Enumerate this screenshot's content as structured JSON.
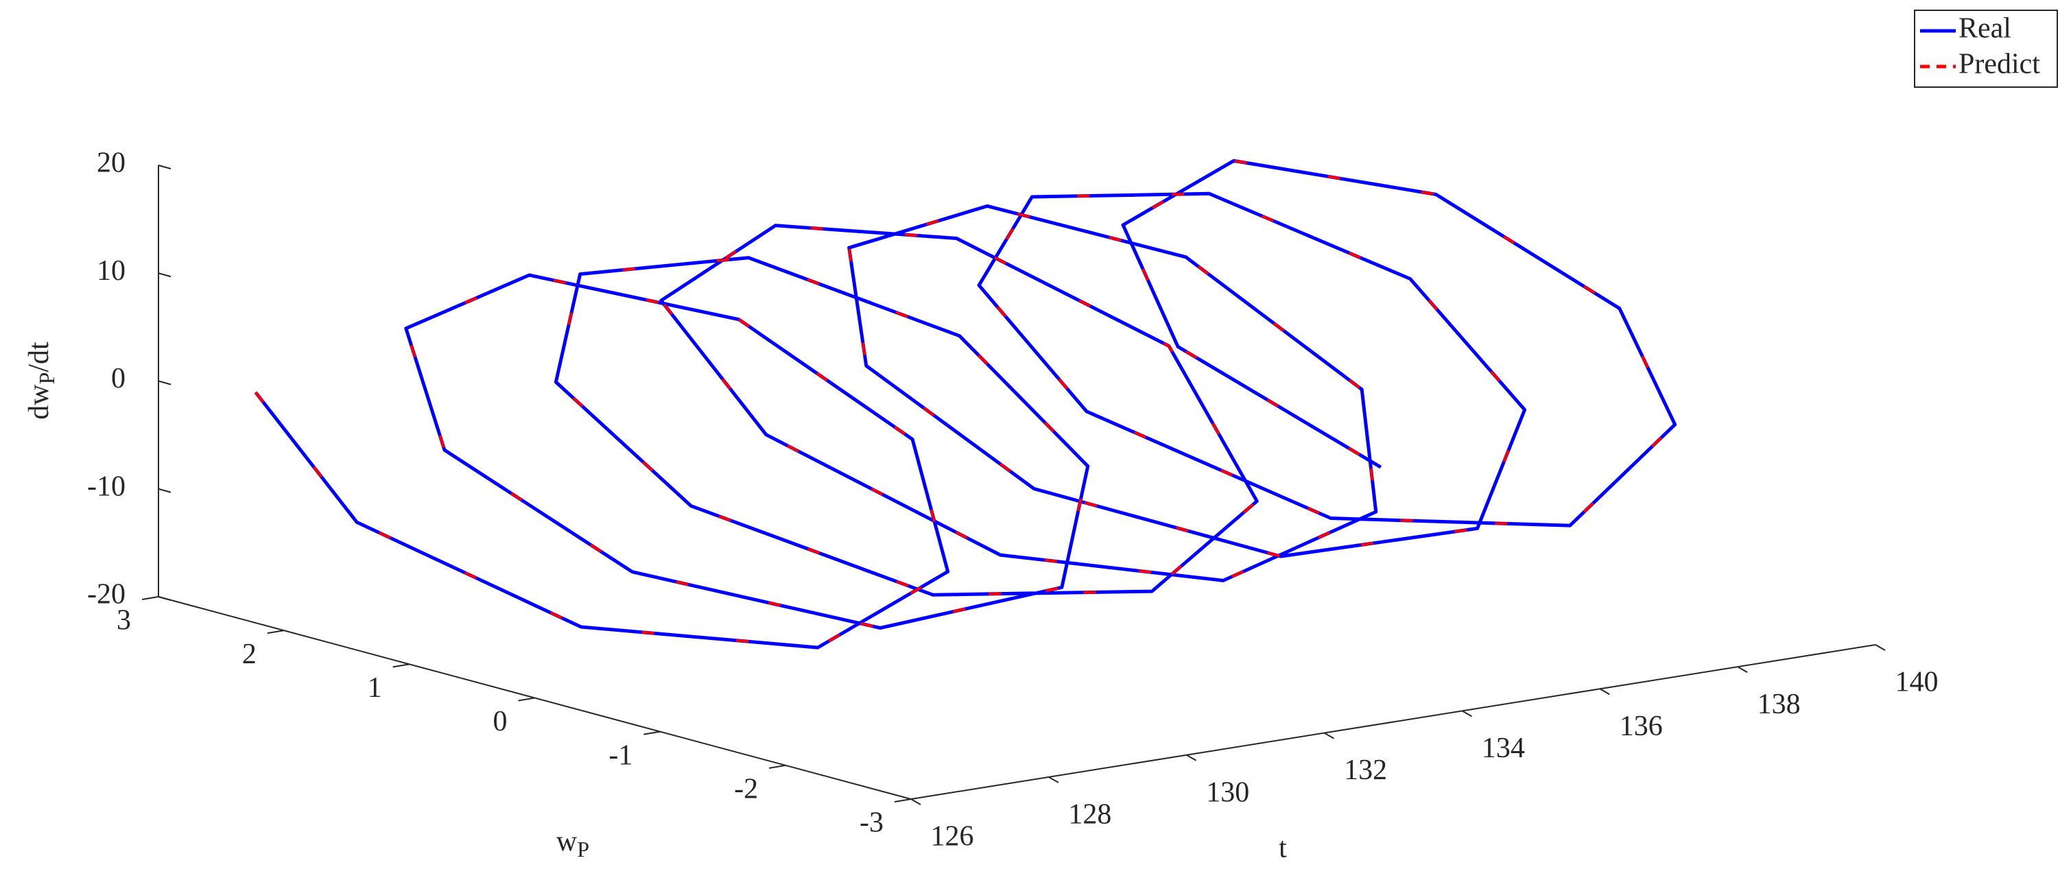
{
  "chart_data": {
    "type": "line3d",
    "xlabel": "t",
    "ylabel": [
      "w",
      "P"
    ],
    "zlabel": [
      "dw",
      "P",
      "/dt"
    ],
    "xlim": [
      126,
      140
    ],
    "xticks": [
      126,
      128,
      130,
      132,
      134,
      136,
      138,
      140
    ],
    "ylim": [
      -3,
      3
    ],
    "yticks": [
      -3,
      -2,
      -1,
      0,
      1,
      2,
      3
    ],
    "zlim": [
      -20,
      20
    ],
    "zticks": [
      -20,
      -10,
      0,
      10,
      20
    ],
    "legend": "upper right",
    "grid": false,
    "x": [
      126.5,
      126.75,
      127,
      127.25,
      127.5,
      127.75,
      128,
      128.25,
      128.5,
      128.75,
      129,
      129.25,
      129.5,
      129.75,
      130,
      130.25,
      130.5,
      130.75,
      131,
      131.25,
      131.5,
      131.75,
      132,
      132.25,
      132.5,
      132.75,
      133,
      133.25,
      133.5,
      133.75,
      134,
      134.25,
      134.5,
      134.75,
      135,
      135.25,
      135.5,
      135.75,
      136,
      136.25,
      136.5,
      136.75,
      137,
      137.25,
      137.5,
      137.75,
      138,
      138.25,
      138.5,
      138.75,
      139,
      139.25,
      139.5
    ],
    "series": [
      {
        "name": "Real",
        "color": "#0000ff",
        "dashed": false,
        "y": [
          2.5,
          1.83,
          0.18,
          -1.57,
          -2.47,
          -2.05,
          -0.53,
          1.28,
          2.4,
          2.23,
          0.87,
          -0.97,
          -2.28,
          -2.35,
          -1.19,
          0.63,
          2.11,
          2.44,
          1.5,
          -0.29,
          -1.9,
          -2.6,
          -1.76,
          0.07,
          1.65,
          2.7,
          2.0,
          0.27,
          -1.37,
          -2.45,
          -2.2,
          -0.66,
          1.06,
          2.3,
          2.3,
          1.1,
          -0.73,
          -2.16,
          -2.4,
          -1.35,
          0.39,
          1.94,
          2.5,
          1.78,
          -0.03,
          -1.8,
          -2.5,
          -1.92,
          -0.32,
          1.43,
          2.45,
          2.15,
          0.67
        ],
        "values": [
          0,
          -10.2,
          -15,
          -11.7,
          -2.1,
          8.6,
          14.7,
          12.9,
          4.2,
          -6.8,
          -14.1,
          -13.8,
          -6.2,
          5,
          13.2,
          14.5,
          8.1,
          -3.2,
          -12,
          -14.9,
          -9.8,
          0.5,
          12,
          16,
          12,
          1.5,
          -9,
          -15,
          -12.5,
          -3,
          7.3,
          14.5,
          13.6,
          5.6,
          -5.6,
          -13.5,
          -14.3,
          -7.5,
          4,
          12.6,
          14.8,
          9.4,
          -0.8,
          -10.5,
          -15,
          -10.4,
          0.9,
          9.6,
          14.9,
          12.3,
          2.9,
          -7.7,
          -14.5
        ]
      },
      {
        "name": "Predict",
        "color": "#ff0000",
        "dashed": true,
        "y": [
          2.5,
          1.83,
          0.18,
          -1.57,
          -2.47,
          -2.05,
          -0.53,
          1.28,
          2.4,
          2.23,
          0.87,
          -0.97,
          -2.28,
          -2.35,
          -1.19,
          0.63,
          2.11,
          2.44,
          1.5,
          -0.29,
          -1.9,
          -2.6,
          -1.76,
          0.07,
          1.65,
          2.7,
          2.0,
          0.27,
          -1.37,
          -2.45,
          -2.2,
          -0.66,
          1.06,
          2.3,
          2.3,
          1.1,
          -0.73,
          -2.16,
          -2.4,
          -1.35,
          0.39,
          1.94,
          2.5,
          1.78,
          -0.03,
          -1.8,
          -2.5,
          -1.92,
          -0.32,
          1.43,
          2.45,
          2.15,
          0.67
        ],
        "values": [
          0,
          -10.2,
          -15,
          -11.7,
          -2.1,
          8.6,
          14.7,
          12.9,
          4.2,
          -6.8,
          -14.1,
          -13.8,
          -6.2,
          5,
          13.2,
          14.5,
          8.1,
          -3.2,
          -12,
          -14.9,
          -9.8,
          0.5,
          12,
          16,
          12,
          1.5,
          -9,
          -15,
          -12.5,
          -3,
          7.3,
          14.5,
          13.6,
          5.6,
          -5.6,
          -13.5,
          -14.3,
          -7.5,
          4,
          12.6,
          14.8,
          9.4,
          -0.8,
          -10.5,
          -15,
          -10.4,
          0.9,
          9.6,
          14.9,
          12.3,
          2.9,
          -7.7,
          -14.5
        ]
      }
    ]
  }
}
